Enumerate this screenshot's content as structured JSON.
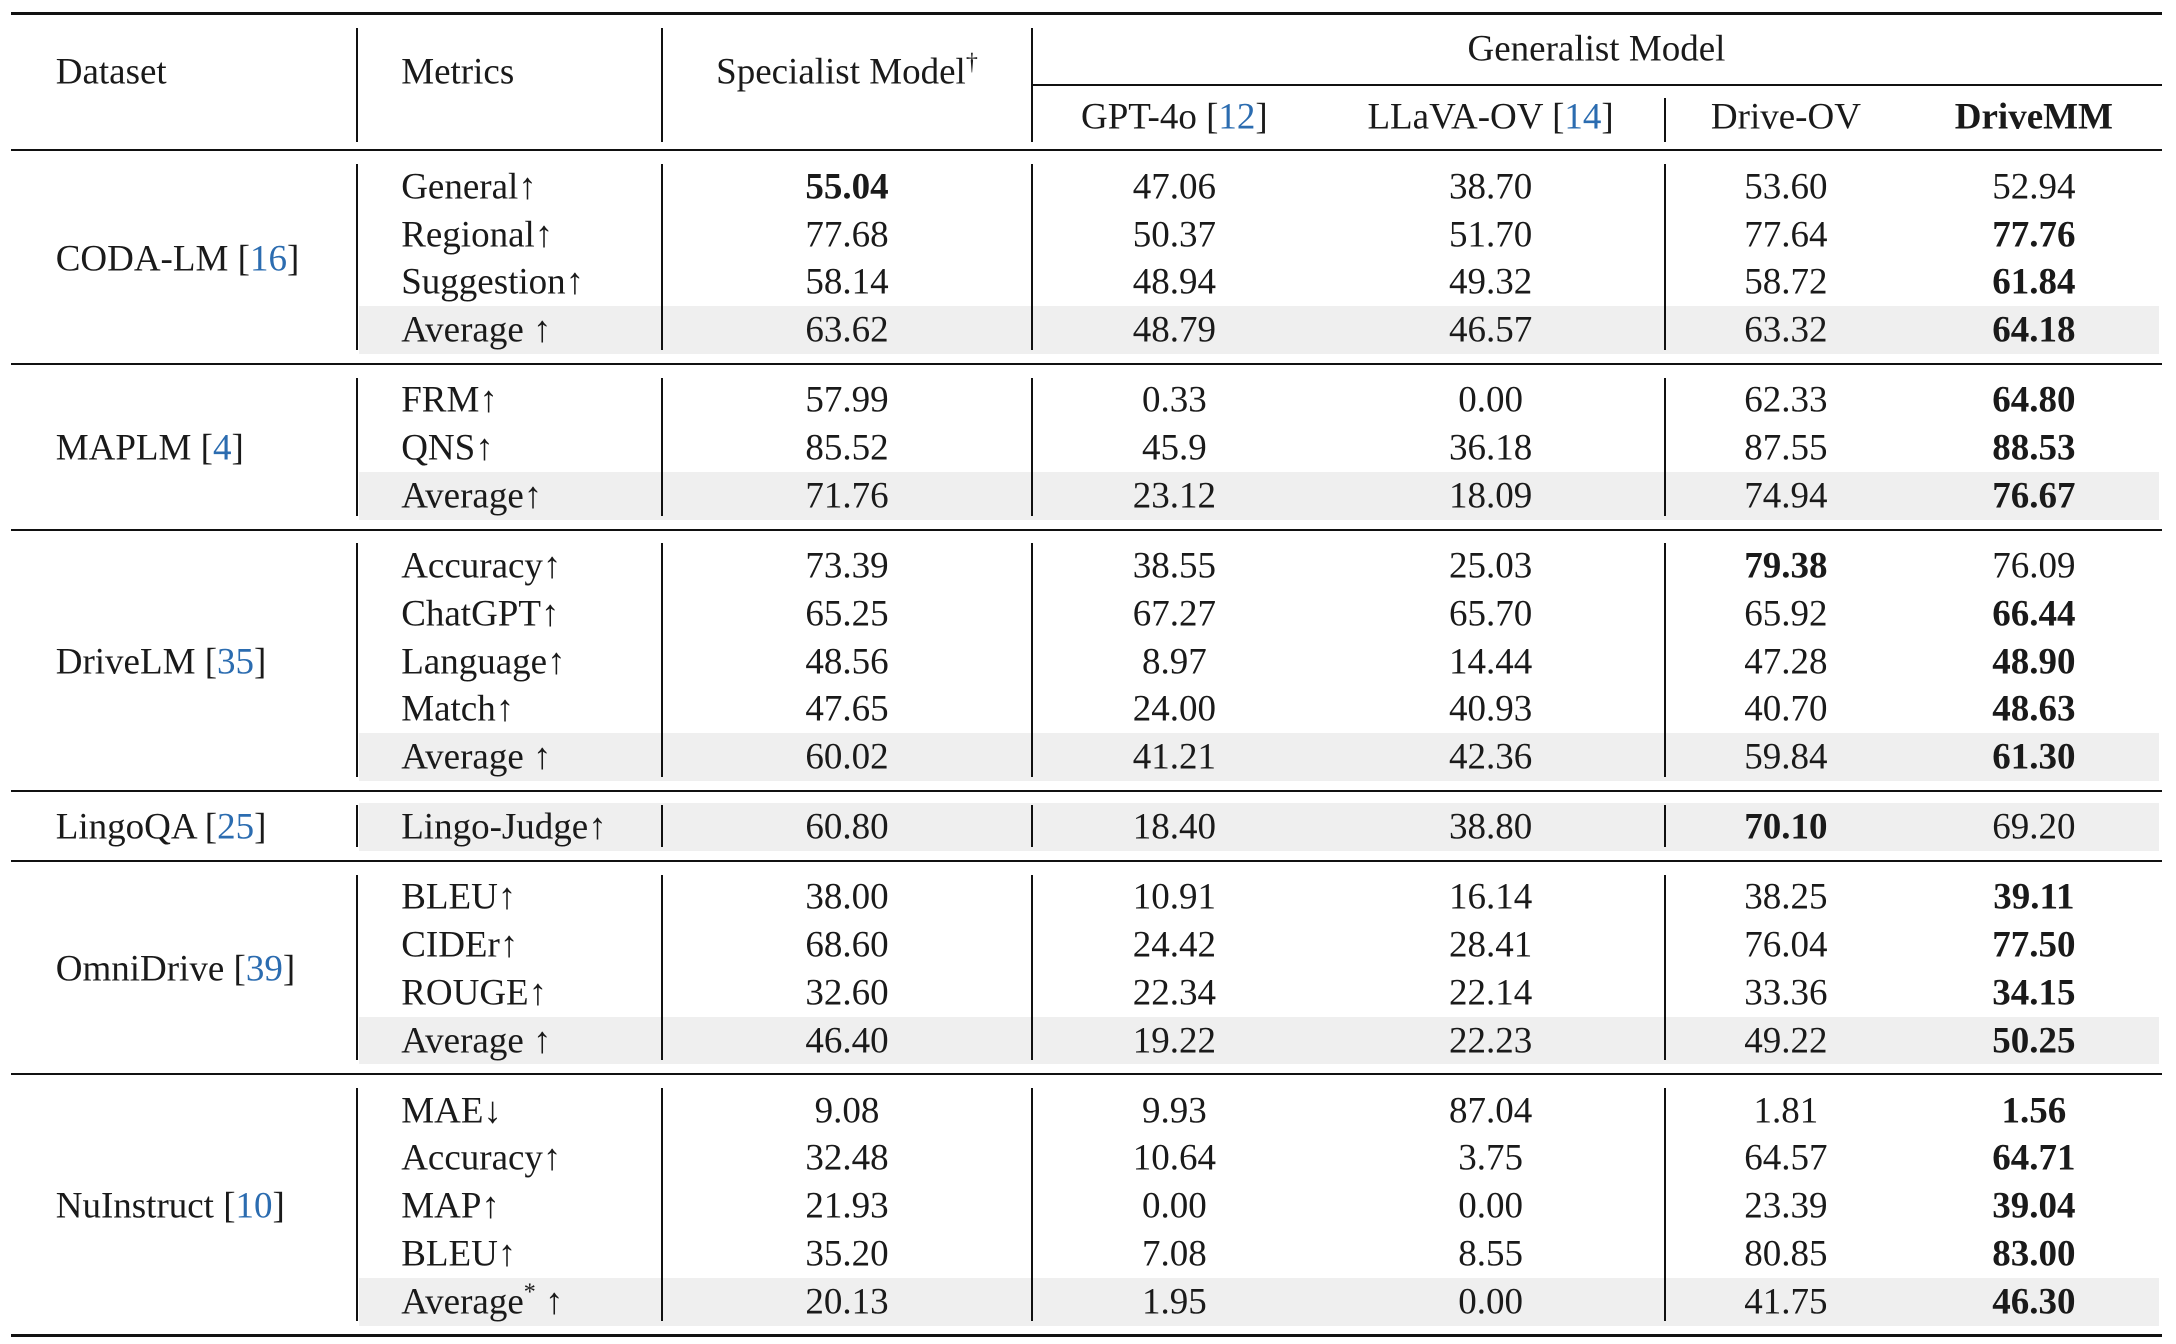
{
  "header": {
    "dataset": "Dataset",
    "metrics": "Metrics",
    "specialist": "Specialist Model",
    "specialist_mark": "†",
    "generalist": "Generalist Model",
    "models": [
      {
        "name": "GPT-4o",
        "cite": "12"
      },
      {
        "name": "LLaVA-OV",
        "cite": "14"
      },
      {
        "name": "Drive-OV",
        "cite": ""
      },
      {
        "name": "DriveMM",
        "cite": ""
      }
    ]
  },
  "groups": [
    {
      "dataset": "CODA-LM",
      "cite": "16",
      "rows": [
        {
          "metric": "General↑",
          "values": [
            "55.04",
            "47.06",
            "38.70",
            "53.60",
            "52.94"
          ],
          "bold": 0
        },
        {
          "metric": "Regional↑",
          "values": [
            "77.68",
            "50.37",
            "51.70",
            "77.64",
            "77.76"
          ],
          "bold": 4
        },
        {
          "metric": "Suggestion↑",
          "values": [
            "58.14",
            "48.94",
            "49.32",
            "58.72",
            "61.84"
          ],
          "bold": 4
        },
        {
          "metric": "Average ↑",
          "values": [
            "63.62",
            "48.79",
            "46.57",
            "63.32",
            "64.18"
          ],
          "bold": 4,
          "avg": true
        }
      ]
    },
    {
      "dataset": "MAPLM",
      "cite": "4",
      "rows": [
        {
          "metric": "FRM↑",
          "values": [
            "57.99",
            "0.33",
            "0.00",
            "62.33",
            "64.80"
          ],
          "bold": 4
        },
        {
          "metric": "QNS↑",
          "values": [
            "85.52",
            "45.9",
            "36.18",
            "87.55",
            "88.53"
          ],
          "bold": 4
        },
        {
          "metric": "Average↑",
          "values": [
            "71.76",
            "23.12",
            "18.09",
            "74.94",
            "76.67"
          ],
          "bold": 4,
          "avg": true
        }
      ]
    },
    {
      "dataset": "DriveLM",
      "cite": "35",
      "rows": [
        {
          "metric": "Accuracy↑",
          "values": [
            "73.39",
            "38.55",
            "25.03",
            "79.38",
            "76.09"
          ],
          "bold": 3
        },
        {
          "metric": "ChatGPT↑",
          "values": [
            "65.25",
            "67.27",
            "65.70",
            "65.92",
            "66.44"
          ],
          "bold": 4
        },
        {
          "metric": "Language↑",
          "values": [
            "48.56",
            "8.97",
            "14.44",
            "47.28",
            "48.90"
          ],
          "bold": 4
        },
        {
          "metric": "Match↑",
          "values": [
            "47.65",
            "24.00",
            "40.93",
            "40.70",
            "48.63"
          ],
          "bold": 4
        },
        {
          "metric": "Average ↑",
          "values": [
            "60.02",
            "41.21",
            "42.36",
            "59.84",
            "61.30"
          ],
          "bold": 4,
          "avg": true
        }
      ]
    },
    {
      "dataset": "LingoQA",
      "cite": "25",
      "rows": [
        {
          "metric": "Lingo-Judge↑",
          "values": [
            "60.80",
            "18.40",
            "38.80",
            "70.10",
            "69.20"
          ],
          "bold": 3,
          "avg": true
        }
      ]
    },
    {
      "dataset": "OmniDrive",
      "cite": "39",
      "rows": [
        {
          "metric": "BLEU↑",
          "values": [
            "38.00",
            "10.91",
            "16.14",
            "38.25",
            "39.11"
          ],
          "bold": 4
        },
        {
          "metric": "CIDEr↑",
          "values": [
            "68.60",
            "24.42",
            "28.41",
            "76.04",
            "77.50"
          ],
          "bold": 4
        },
        {
          "metric": "ROUGE↑",
          "values": [
            "32.60",
            "22.34",
            "22.14",
            "33.36",
            "34.15"
          ],
          "bold": 4
        },
        {
          "metric": "Average ↑",
          "values": [
            "46.40",
            "19.22",
            "22.23",
            "49.22",
            "50.25"
          ],
          "bold": 4,
          "avg": true
        }
      ]
    },
    {
      "dataset": "NuInstruct",
      "cite": "10",
      "rows": [
        {
          "metric": "MAE↓",
          "values": [
            "9.08",
            "9.93",
            "87.04",
            "1.81",
            "1.56"
          ],
          "bold": 4
        },
        {
          "metric": "Accuracy↑",
          "values": [
            "32.48",
            "10.64",
            "3.75",
            "64.57",
            "64.71"
          ],
          "bold": 4
        },
        {
          "metric": "MAP↑",
          "values": [
            "21.93",
            "0.00",
            "0.00",
            "23.39",
            "39.04"
          ],
          "bold": 4
        },
        {
          "metric": "BLEU↑",
          "values": [
            "35.20",
            "7.08",
            "8.55",
            "80.85",
            "83.00"
          ],
          "bold": 4
        },
        {
          "metric": "Average* ↑",
          "metric_base": "Average",
          "metric_sup": "*",
          "metric_tail": " ↑",
          "values": [
            "20.13",
            "1.95",
            "0.00",
            "41.75",
            "46.30"
          ],
          "bold": 4,
          "avg": true
        }
      ]
    }
  ]
}
